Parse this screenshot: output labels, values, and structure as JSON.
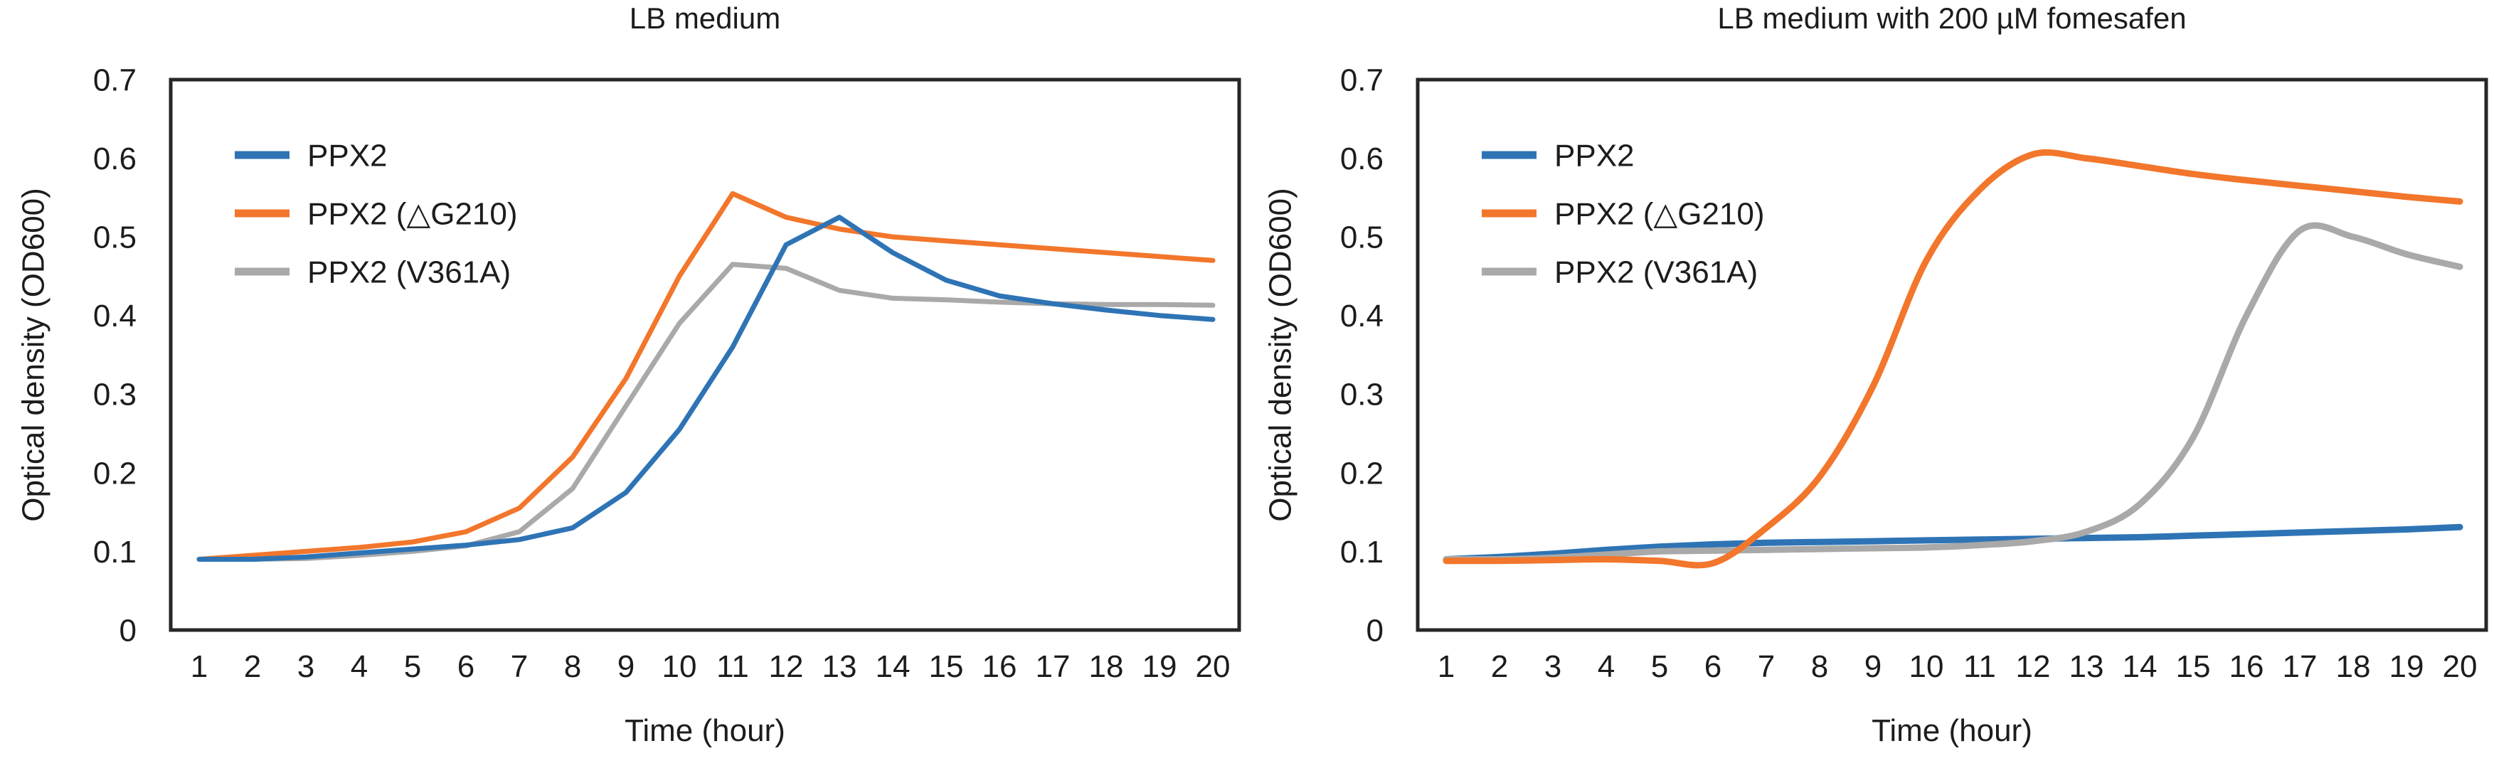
{
  "figure": {
    "background": "#ffffff",
    "text_color": "#1c1c1c",
    "frame_color": "#262626"
  },
  "chart_data": [
    {
      "type": "line",
      "title": "LB medium",
      "xlabel": "Time (hour)",
      "ylabel": "Optical density (OD600)",
      "x": [
        1,
        2,
        3,
        4,
        5,
        6,
        7,
        8,
        9,
        10,
        11,
        12,
        13,
        14,
        15,
        16,
        17,
        18,
        19,
        20
      ],
      "ylim": [
        0,
        0.7
      ],
      "yticks": [
        0,
        0.1,
        0.2,
        0.3,
        0.4,
        0.5,
        0.6,
        0.7
      ],
      "ytick_labels": [
        "0",
        "0.1",
        "0.2",
        "0.3",
        "0.4",
        "0.5",
        "0.6",
        "0.7"
      ],
      "grid": false,
      "legend_position": "top-left-inside",
      "series": [
        {
          "name": "PPX2",
          "color": "#2E74B5",
          "values": [
            0.09,
            0.09,
            0.093,
            0.098,
            0.103,
            0.108,
            0.115,
            0.13,
            0.175,
            0.255,
            0.36,
            0.49,
            0.525,
            0.48,
            0.445,
            0.425,
            0.415,
            0.407,
            0.4,
            0.395
          ]
        },
        {
          "name": "PPX2 (△G210)",
          "color": "#F2762B",
          "values": [
            0.09,
            0.095,
            0.1,
            0.105,
            0.112,
            0.125,
            0.155,
            0.22,
            0.32,
            0.45,
            0.555,
            0.525,
            0.51,
            0.5,
            0.495,
            0.49,
            0.485,
            0.48,
            0.475,
            0.47
          ]
        },
        {
          "name": "PPX2 (V361A)",
          "color": "#A9A9A9",
          "values": [
            0.09,
            0.09,
            0.091,
            0.095,
            0.1,
            0.107,
            0.125,
            0.18,
            0.285,
            0.39,
            0.465,
            0.46,
            0.432,
            0.422,
            0.42,
            0.417,
            0.415,
            0.414,
            0.414,
            0.413
          ]
        }
      ]
    },
    {
      "type": "line",
      "title": "LB medium with 200 µM fomesafen",
      "xlabel": "Time (hour)",
      "ylabel": "Optical density (OD600)",
      "x": [
        1,
        2,
        3,
        4,
        5,
        6,
        7,
        8,
        9,
        10,
        11,
        12,
        13,
        14,
        15,
        16,
        17,
        18,
        19,
        20
      ],
      "ylim": [
        0,
        0.7
      ],
      "yticks": [
        0,
        0.1,
        0.2,
        0.3,
        0.4,
        0.5,
        0.6,
        0.7
      ],
      "ytick_labels": [
        "0",
        "0.1",
        "0.2",
        "0.3",
        "0.4",
        "0.5",
        "0.6",
        "0.7"
      ],
      "grid": false,
      "legend_position": "top-left-inside",
      "series": [
        {
          "name": "PPX2",
          "color": "#2E74B5",
          "values": [
            0.09,
            0.093,
            0.097,
            0.102,
            0.106,
            0.109,
            0.111,
            0.112,
            0.113,
            0.114,
            0.115,
            0.116,
            0.117,
            0.118,
            0.12,
            0.122,
            0.124,
            0.126,
            0.128,
            0.131
          ]
        },
        {
          "name": "PPX2 (△G210)",
          "color": "#F2762B",
          "values": [
            0.088,
            0.088,
            0.089,
            0.09,
            0.088,
            0.085,
            0.13,
            0.195,
            0.31,
            0.47,
            0.56,
            0.605,
            0.6,
            0.59,
            0.58,
            0.572,
            0.565,
            0.558,
            0.551,
            0.545
          ]
        },
        {
          "name": "PPX2 (V361A)",
          "color": "#A9A9A9",
          "values": [
            0.09,
            0.09,
            0.092,
            0.096,
            0.1,
            0.101,
            0.102,
            0.103,
            0.104,
            0.105,
            0.108,
            0.113,
            0.125,
            0.16,
            0.245,
            0.4,
            0.508,
            0.5,
            0.478,
            0.462
          ]
        }
      ]
    }
  ]
}
